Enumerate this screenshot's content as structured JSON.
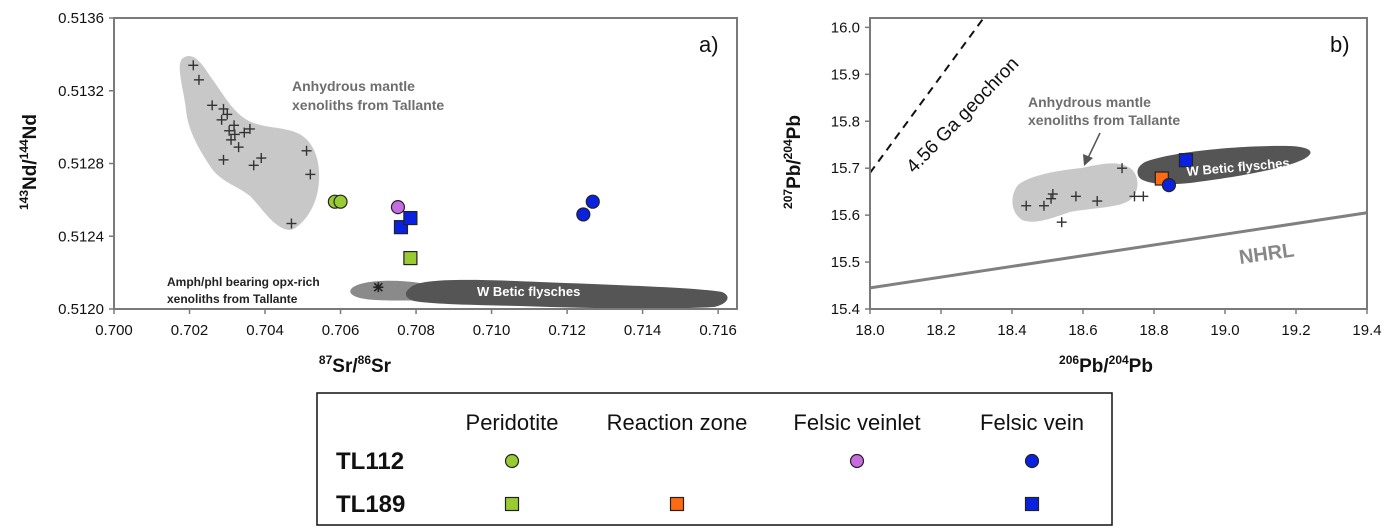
{
  "colors": {
    "peridotite": "#99cc33",
    "reaction_zone": "#ff6a13",
    "felsic_veinlet": "#c66be0",
    "felsic_vein": "#0a22e0",
    "mantle_field": "#c8c8c8",
    "flysch_field": "#555555",
    "amph_field": "#8a8a8a"
  },
  "chart_data": [
    {
      "panel": "a)",
      "type": "scatter",
      "xlabel": "87Sr/86Sr",
      "ylabel": "143Nd/144Nd",
      "xlim": [
        0.7,
        0.7165
      ],
      "ylim": [
        0.512,
        0.5136
      ],
      "xticks": [
        "0.700",
        "0.702",
        "0.704",
        "0.706",
        "0.708",
        "0.710",
        "0.712",
        "0.714",
        "0.716"
      ],
      "yticks": [
        "0.5120",
        "0.5124",
        "0.5128",
        "0.5132",
        "0.5136"
      ],
      "grid": false,
      "fields": [
        {
          "label_lines": [
            "Anhydrous mantle",
            "xenoliths from Tallante"
          ]
        },
        {
          "label_lines": [
            "Amph/phl bearing opx-rich",
            "xenoliths from Tallante"
          ]
        },
        {
          "label_lines": [
            "W Betic flysches"
          ]
        }
      ],
      "mantle_crosses": [
        [
          0.7021,
          0.51334
        ],
        [
          0.70225,
          0.51326
        ],
        [
          0.7026,
          0.51312
        ],
        [
          0.70285,
          0.51304
        ],
        [
          0.7029,
          0.5131
        ],
        [
          0.703,
          0.51307
        ],
        [
          0.70305,
          0.51298
        ],
        [
          0.7031,
          0.51293
        ],
        [
          0.70318,
          0.51301
        ],
        [
          0.7032,
          0.51296
        ],
        [
          0.7033,
          0.51289
        ],
        [
          0.70345,
          0.51297
        ],
        [
          0.7036,
          0.51299
        ],
        [
          0.7029,
          0.51282
        ],
        [
          0.7037,
          0.51279
        ],
        [
          0.7039,
          0.51283
        ],
        [
          0.7047,
          0.51247
        ],
        [
          0.7051,
          0.51287
        ],
        [
          0.7052,
          0.51274
        ]
      ],
      "amph_star": [
        0.707,
        0.51212
      ],
      "samples": [
        {
          "sample": "TL112",
          "component": "Peridotite",
          "marker": "circle",
          "x": 0.70585,
          "y": 0.51259
        },
        {
          "sample": "TL112",
          "component": "Peridotite",
          "marker": "circle",
          "x": 0.706,
          "y": 0.51259
        },
        {
          "sample": "TL112",
          "component": "Felsic veinlet",
          "marker": "circle",
          "x": 0.70752,
          "y": 0.51256
        },
        {
          "sample": "TL189",
          "component": "Felsic vein",
          "marker": "square",
          "x": 0.7076,
          "y": 0.51245
        },
        {
          "sample": "TL189",
          "component": "Felsic vein",
          "marker": "square",
          "x": 0.70785,
          "y": 0.5125
        },
        {
          "sample": "TL189",
          "component": "Peridotite",
          "marker": "square",
          "x": 0.70785,
          "y": 0.51228
        },
        {
          "sample": "TL112",
          "component": "Felsic vein",
          "marker": "circle",
          "x": 0.71243,
          "y": 0.51252
        },
        {
          "sample": "TL112",
          "component": "Felsic vein",
          "marker": "circle",
          "x": 0.71268,
          "y": 0.51259
        }
      ]
    },
    {
      "panel": "b)",
      "type": "scatter",
      "xlabel": "206Pb/204Pb",
      "ylabel": "207Pb/204Pb",
      "xlim": [
        18.0,
        19.4
      ],
      "ylim": [
        15.4,
        16.02
      ],
      "xticks": [
        "18.0",
        "18.2",
        "18.4",
        "18.6",
        "18.8",
        "19.0",
        "19.2",
        "19.4"
      ],
      "yticks": [
        "15.4",
        "15.5",
        "15.6",
        "15.7",
        "15.8",
        "15.9",
        "16.0"
      ],
      "grid": false,
      "lines": [
        {
          "label": "4.56 Ga geochron",
          "style": "dashed",
          "from": [
            18.0,
            15.69
          ],
          "to": [
            18.32,
            16.02
          ]
        },
        {
          "label": "NHRL",
          "style": "solid",
          "from": [
            18.0,
            15.445
          ],
          "to": [
            19.4,
            15.605
          ]
        }
      ],
      "fields": [
        {
          "label_lines": [
            "Anhydrous mantle",
            "xenoliths from Tallante"
          ]
        },
        {
          "label_lines": [
            "W Betic flysches"
          ]
        }
      ],
      "mantle_crosses": [
        [
          18.44,
          15.62
        ],
        [
          18.49,
          15.62
        ],
        [
          18.51,
          15.635
        ],
        [
          18.515,
          15.645
        ],
        [
          18.54,
          15.585
        ],
        [
          18.58,
          15.64
        ],
        [
          18.64,
          15.63
        ],
        [
          18.71,
          15.7
        ],
        [
          18.745,
          15.64
        ],
        [
          18.77,
          15.64
        ]
      ],
      "samples": [
        {
          "sample": "TL189",
          "component": "Reaction zone",
          "marker": "square",
          "x": 18.822,
          "y": 15.678
        },
        {
          "sample": "TL189",
          "component": "Felsic vein",
          "marker": "square",
          "x": 18.89,
          "y": 15.717
        },
        {
          "sample": "TL112",
          "component": "Felsic vein",
          "marker": "circle",
          "x": 18.842,
          "y": 15.664
        }
      ]
    }
  ],
  "legend": {
    "columns": [
      "Peridotite",
      "Reaction zone",
      "Felsic veinlet",
      "Felsic vein"
    ],
    "rows": [
      {
        "name": "TL112",
        "marker": "circle",
        "present": [
          true,
          false,
          true,
          true
        ]
      },
      {
        "name": "TL189",
        "marker": "square",
        "present": [
          true,
          true,
          false,
          true
        ]
      }
    ]
  }
}
